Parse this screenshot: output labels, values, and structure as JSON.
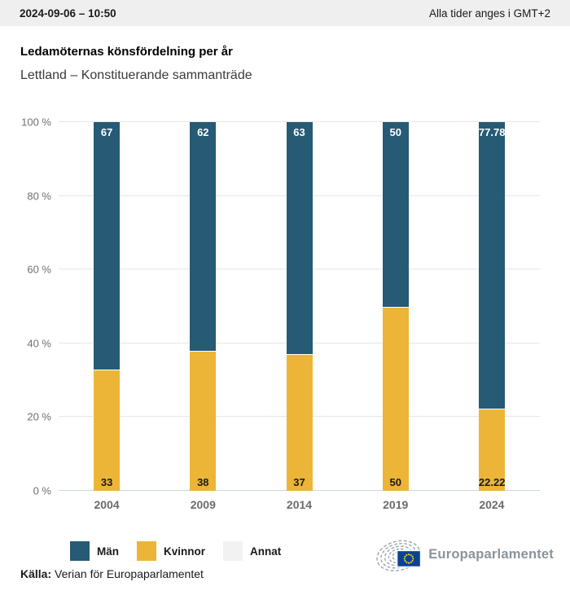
{
  "header": {
    "datetime": "2024-09-06 – 10:50",
    "timezone_note": "Alla tider anges i GMT+2"
  },
  "title": "Ledamöternas könsfördelning per år",
  "subtitle": "Lettland – Konstituerande sammanträde",
  "chart_data": {
    "type": "bar",
    "stacked": true,
    "categories": [
      "2004",
      "2009",
      "2014",
      "2019",
      "2024"
    ],
    "series": [
      {
        "name": "Män",
        "color": "#265a75",
        "values": [
          67,
          62,
          63,
          50,
          77.78
        ],
        "label_color": "#ffffff",
        "label_position": "top"
      },
      {
        "name": "Kvinnor",
        "color": "#ecb537",
        "values": [
          33,
          38,
          37,
          50,
          22.22
        ],
        "label_color": "#1a1a1a",
        "label_position": "bottom"
      },
      {
        "name": "Annat",
        "color": "#f2f2f2",
        "values": [
          0,
          0,
          0,
          0,
          0
        ]
      }
    ],
    "yticks": [
      0,
      20,
      40,
      60,
      80,
      100
    ],
    "ytick_suffix": " %",
    "ylim": [
      0,
      100
    ],
    "grid": true,
    "legend_position": "bottom-left"
  },
  "source": {
    "label": "Källa:",
    "text": "Verian för Europaparlamentet"
  },
  "logo": {
    "text": "Europaparlamentet",
    "arc_color": "#99a1a8",
    "flag_color": "#0b4295",
    "star_color": "#f8d12e"
  }
}
